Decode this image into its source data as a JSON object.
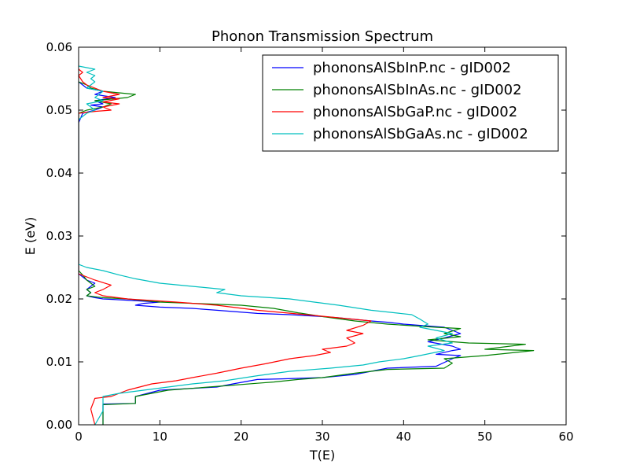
{
  "chart_data": {
    "type": "line",
    "title": "Phonon Transmission Spectrum",
    "xlabel": "T(E)",
    "ylabel": "E (eV)",
    "xlim": [
      0,
      60
    ],
    "ylim": [
      0,
      0.06
    ],
    "xticks": [
      "0",
      "10",
      "20",
      "30",
      "40",
      "50",
      "60"
    ],
    "yticks": [
      "0.00",
      "0.01",
      "0.02",
      "0.03",
      "0.04",
      "0.05",
      "0.06"
    ],
    "grid": false,
    "legend_position": "top-right",
    "series": [
      {
        "name": "phononsAlSbInP.nc - gID002",
        "color": "#0000ff",
        "points": [
          [
            3,
            0.0
          ],
          [
            3,
            0.0033
          ],
          [
            7,
            0.0034
          ],
          [
            7,
            0.0045
          ],
          [
            10,
            0.0055
          ],
          [
            17,
            0.006
          ],
          [
            19,
            0.0065
          ],
          [
            22,
            0.0072
          ],
          [
            25,
            0.0073
          ],
          [
            30,
            0.0075
          ],
          [
            34,
            0.008
          ],
          [
            36,
            0.0085
          ],
          [
            38,
            0.009
          ],
          [
            44,
            0.0093
          ],
          [
            46,
            0.0105
          ],
          [
            47,
            0.011
          ],
          [
            44,
            0.0112
          ],
          [
            46,
            0.0118
          ],
          [
            47,
            0.012
          ],
          [
            46,
            0.0125
          ],
          [
            43,
            0.0132
          ],
          [
            45,
            0.0138
          ],
          [
            47,
            0.0145
          ],
          [
            46,
            0.015
          ],
          [
            45,
            0.0155
          ],
          [
            40,
            0.016
          ],
          [
            38,
            0.0163
          ],
          [
            36,
            0.0165
          ],
          [
            32,
            0.017
          ],
          [
            30,
            0.0172
          ],
          [
            26,
            0.0175
          ],
          [
            22,
            0.0177
          ],
          [
            17,
            0.0182
          ],
          [
            14,
            0.0185
          ],
          [
            10,
            0.0187
          ],
          [
            7,
            0.019
          ],
          [
            8,
            0.0193
          ],
          [
            10,
            0.0195
          ],
          [
            6,
            0.0198
          ],
          [
            3,
            0.02
          ],
          [
            2,
            0.0202
          ],
          [
            1,
            0.0205
          ],
          [
            1.5,
            0.021
          ],
          [
            1,
            0.0215
          ],
          [
            1.5,
            0.022
          ],
          [
            2,
            0.0225
          ],
          [
            1,
            0.023
          ],
          [
            0.5,
            0.0235
          ],
          [
            0,
            0.024
          ],
          [
            0,
            0.048
          ],
          [
            0.5,
            0.0495
          ],
          [
            2,
            0.05
          ],
          [
            3,
            0.0505
          ],
          [
            1.5,
            0.0508
          ],
          [
            3,
            0.051
          ],
          [
            2,
            0.0515
          ],
          [
            4.5,
            0.052
          ],
          [
            2,
            0.0525
          ],
          [
            3,
            0.053
          ],
          [
            1,
            0.0535
          ],
          [
            0.5,
            0.054
          ],
          [
            0,
            0.0545
          ]
        ]
      },
      {
        "name": "phononsAlSbInAs.nc - gID002",
        "color": "#008000",
        "points": [
          [
            3,
            0.0
          ],
          [
            3,
            0.0032
          ],
          [
            7,
            0.0034
          ],
          [
            7,
            0.0045
          ],
          [
            11,
            0.0055
          ],
          [
            16,
            0.006
          ],
          [
            19,
            0.0063
          ],
          [
            22,
            0.0066
          ],
          [
            24,
            0.0068
          ],
          [
            27,
            0.0072
          ],
          [
            30,
            0.0075
          ],
          [
            34,
            0.0082
          ],
          [
            38,
            0.0088
          ],
          [
            45,
            0.009
          ],
          [
            46,
            0.0098
          ],
          [
            45,
            0.0105
          ],
          [
            50,
            0.011
          ],
          [
            56,
            0.0118
          ],
          [
            50,
            0.012
          ],
          [
            55,
            0.0128
          ],
          [
            48,
            0.013
          ],
          [
            43,
            0.0135
          ],
          [
            47,
            0.014
          ],
          [
            45,
            0.0145
          ],
          [
            47,
            0.0153
          ],
          [
            44,
            0.0155
          ],
          [
            38,
            0.016
          ],
          [
            34,
            0.0165
          ],
          [
            30,
            0.0172
          ],
          [
            27,
            0.0178
          ],
          [
            24,
            0.0185
          ],
          [
            20,
            0.019
          ],
          [
            16,
            0.0192
          ],
          [
            10,
            0.0195
          ],
          [
            6,
            0.02
          ],
          [
            3,
            0.0202
          ],
          [
            1,
            0.0205
          ],
          [
            1.5,
            0.021
          ],
          [
            1,
            0.0215
          ],
          [
            2,
            0.022
          ],
          [
            1.5,
            0.0225
          ],
          [
            1,
            0.023
          ],
          [
            0.5,
            0.0238
          ],
          [
            0,
            0.0245
          ],
          [
            0,
            0.0495
          ],
          [
            1,
            0.05
          ],
          [
            3,
            0.0505
          ],
          [
            4,
            0.051
          ],
          [
            2,
            0.0515
          ],
          [
            6,
            0.052
          ],
          [
            7,
            0.0525
          ],
          [
            3,
            0.053
          ],
          [
            1.5,
            0.0535
          ],
          [
            1,
            0.054
          ],
          [
            0,
            0.0545
          ]
        ]
      },
      {
        "name": "phononsAlSbGaP.nc - gID002",
        "color": "#ff0000",
        "points": [
          [
            2,
            0.0
          ],
          [
            1.5,
            0.0025
          ],
          [
            2,
            0.0042
          ],
          [
            4,
            0.0045
          ],
          [
            6,
            0.0055
          ],
          [
            9,
            0.0065
          ],
          [
            12,
            0.007
          ],
          [
            14,
            0.0075
          ],
          [
            17,
            0.0082
          ],
          [
            20,
            0.009
          ],
          [
            23,
            0.0097
          ],
          [
            26,
            0.0105
          ],
          [
            29,
            0.011
          ],
          [
            31,
            0.0115
          ],
          [
            30,
            0.012
          ],
          [
            33,
            0.0125
          ],
          [
            34,
            0.013
          ],
          [
            33,
            0.0138
          ],
          [
            35,
            0.0145
          ],
          [
            33,
            0.015
          ],
          [
            35,
            0.0158
          ],
          [
            36,
            0.0165
          ],
          [
            32,
            0.017
          ],
          [
            28,
            0.0175
          ],
          [
            22,
            0.0182
          ],
          [
            17,
            0.019
          ],
          [
            12,
            0.0195
          ],
          [
            6,
            0.02
          ],
          [
            3,
            0.0205
          ],
          [
            2,
            0.021
          ],
          [
            3,
            0.0215
          ],
          [
            4,
            0.0222
          ],
          [
            2,
            0.023
          ],
          [
            1,
            0.0235
          ],
          [
            0,
            0.024
          ],
          [
            0,
            0.0495
          ],
          [
            2,
            0.0498
          ],
          [
            4,
            0.05
          ],
          [
            3,
            0.0505
          ],
          [
            5,
            0.051
          ],
          [
            3,
            0.0513
          ],
          [
            5,
            0.0518
          ],
          [
            3,
            0.052
          ],
          [
            5,
            0.0525
          ],
          [
            3,
            0.053
          ],
          [
            2,
            0.0535
          ],
          [
            1,
            0.054
          ],
          [
            0.5,
            0.0545
          ],
          [
            0,
            0.0555
          ],
          [
            0.5,
            0.056
          ],
          [
            0,
            0.0565
          ]
        ]
      },
      {
        "name": "phononsAlSbGaAs.nc - gID002",
        "color": "#00bfbf",
        "points": [
          [
            2,
            0.0
          ],
          [
            3,
            0.0022
          ],
          [
            3,
            0.0045
          ],
          [
            5,
            0.005
          ],
          [
            8,
            0.0055
          ],
          [
            11,
            0.006
          ],
          [
            14,
            0.0065
          ],
          [
            18,
            0.007
          ],
          [
            22,
            0.0078
          ],
          [
            26,
            0.0085
          ],
          [
            31,
            0.009
          ],
          [
            35,
            0.0095
          ],
          [
            37,
            0.01
          ],
          [
            40,
            0.0105
          ],
          [
            42,
            0.011
          ],
          [
            45,
            0.0118
          ],
          [
            43,
            0.0125
          ],
          [
            46,
            0.013
          ],
          [
            44,
            0.0138
          ],
          [
            46,
            0.0145
          ],
          [
            42,
            0.0155
          ],
          [
            43,
            0.016
          ],
          [
            42,
            0.0168
          ],
          [
            41,
            0.0175
          ],
          [
            36,
            0.0182
          ],
          [
            32,
            0.019
          ],
          [
            26,
            0.02
          ],
          [
            20,
            0.0205
          ],
          [
            17,
            0.021
          ],
          [
            18,
            0.0215
          ],
          [
            14,
            0.022
          ],
          [
            10,
            0.0225
          ],
          [
            7,
            0.0232
          ],
          [
            5,
            0.0238
          ],
          [
            3,
            0.0245
          ],
          [
            1,
            0.025
          ],
          [
            0,
            0.0255
          ],
          [
            0,
            0.0485
          ],
          [
            1,
            0.0495
          ],
          [
            2,
            0.05
          ],
          [
            1,
            0.051
          ],
          [
            3,
            0.0515
          ],
          [
            2,
            0.052
          ],
          [
            3,
            0.053
          ],
          [
            1,
            0.0535
          ],
          [
            2,
            0.0545
          ],
          [
            1.5,
            0.055
          ],
          [
            2,
            0.0555
          ],
          [
            1,
            0.056
          ],
          [
            2,
            0.0565
          ],
          [
            0,
            0.057
          ]
        ]
      }
    ]
  }
}
